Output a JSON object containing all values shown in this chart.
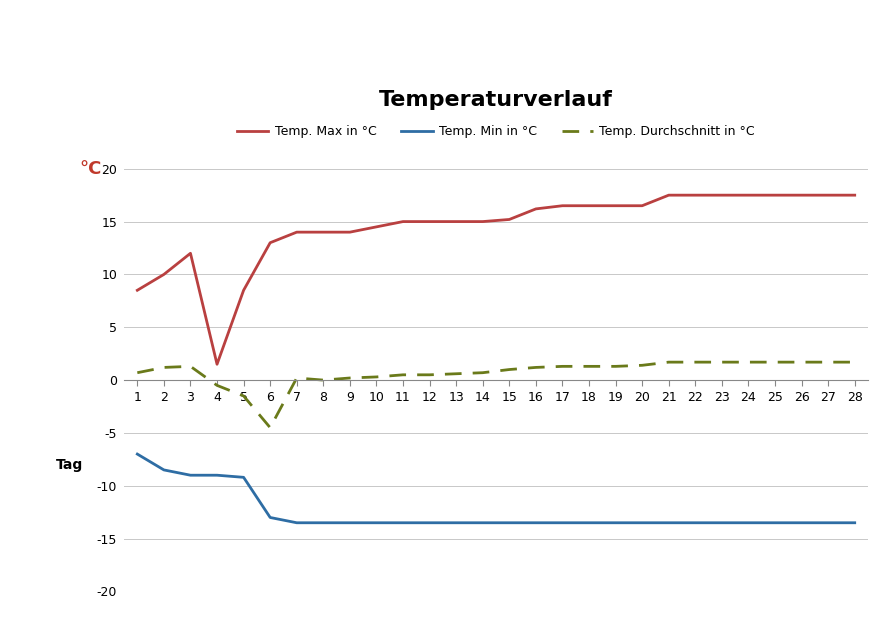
{
  "title": "Temperaturverlauf",
  "days": [
    1,
    2,
    3,
    4,
    5,
    6,
    7,
    8,
    9,
    10,
    11,
    12,
    13,
    14,
    15,
    16,
    17,
    18,
    19,
    20,
    21,
    22,
    23,
    24,
    25,
    26,
    27,
    28
  ],
  "temp_max": [
    8.5,
    10.0,
    12.0,
    1.5,
    8.5,
    13.0,
    14.0,
    14.0,
    14.0,
    14.5,
    15.0,
    15.0,
    15.0,
    15.0,
    15.2,
    16.2,
    16.5,
    16.5,
    16.5,
    16.5,
    17.5,
    17.5,
    17.5,
    17.5,
    17.5,
    17.5,
    17.5,
    17.5
  ],
  "temp_min": [
    -7.0,
    -8.5,
    -9.0,
    -9.0,
    -9.2,
    -13.0,
    -13.5,
    -13.5,
    -13.5,
    -13.5,
    -13.5,
    -13.5,
    -13.5,
    -13.5,
    -13.5,
    -13.5,
    -13.5,
    -13.5,
    -13.5,
    -13.5,
    -13.5,
    -13.5,
    -13.5,
    -13.5,
    -13.5,
    -13.5,
    -13.5,
    -13.5
  ],
  "temp_avg": [
    0.7,
    1.2,
    1.3,
    -0.5,
    -1.5,
    -4.5,
    0.2,
    0.0,
    0.2,
    0.3,
    0.5,
    0.5,
    0.6,
    0.7,
    1.0,
    1.2,
    1.3,
    1.3,
    1.3,
    1.4,
    1.7,
    1.7,
    1.7,
    1.7,
    1.7,
    1.7,
    1.7,
    1.7
  ],
  "color_max": "#b94040",
  "color_min": "#2e6da4",
  "color_avg": "#6a7a1a",
  "ylabel_color": "#c0392b",
  "ylim": [
    -20,
    20
  ],
  "yticks": [
    -20,
    -15,
    -10,
    -5,
    0,
    5,
    10,
    15,
    20
  ],
  "xlabel_text": "Tag",
  "ylabel_text": "°C",
  "legend_max": "Temp. Max in °C",
  "legend_min": "Temp. Min in °C",
  "legend_avg": "Temp. Durchschnitt in °C",
  "background_color": "#ffffff",
  "grid_color": "#c8c8c8"
}
